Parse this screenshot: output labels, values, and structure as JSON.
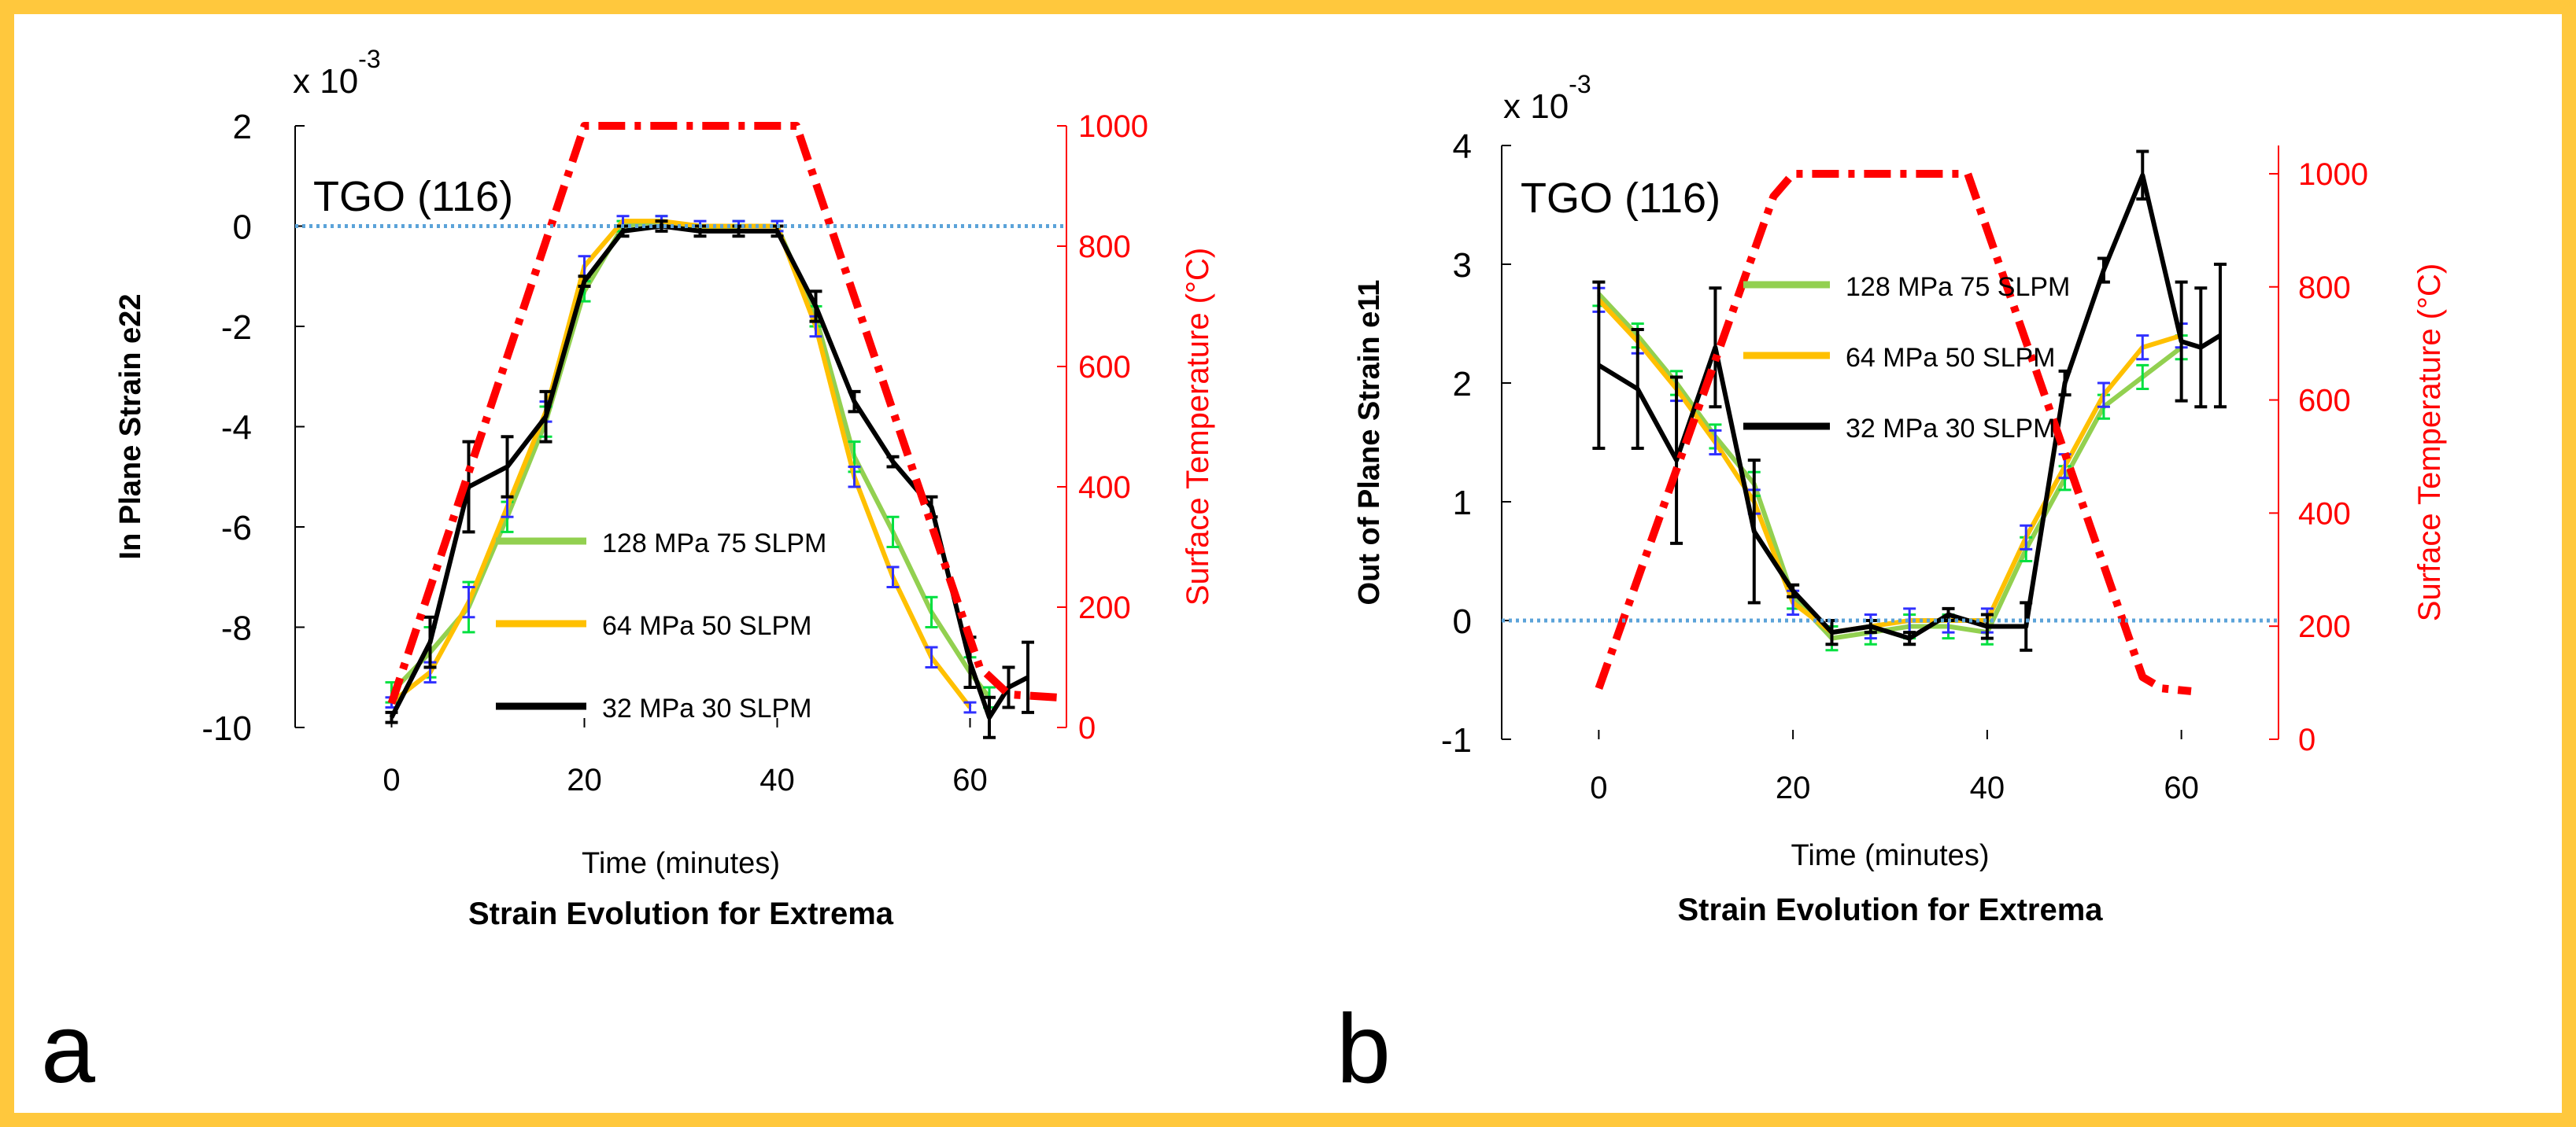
{
  "frame_color": "#FFC83D",
  "panel_labels": {
    "a": "a",
    "b": "b"
  },
  "colors": {
    "green": "#92D050",
    "yellow": "#FFC000",
    "black": "#000000",
    "red": "#FF0000",
    "blue": "#5BA3D9",
    "err_green": "#00E040",
    "err_blue": "#3030FF"
  },
  "chart_data": [
    {
      "type": "line",
      "panel": "a",
      "title": "Strain Evolution for Extrema",
      "xlabel": "Time (minutes)",
      "ylabel": "In Plane Strain e22",
      "y2label": "Surface Temperature (°C)",
      "exponent": "x 10",
      "exponent_power": "-3",
      "annotation": "TGO (116)",
      "xlim": [
        -10,
        70
      ],
      "ylim": [
        -10,
        2
      ],
      "y2lim": [
        0,
        1000
      ],
      "xticks": [
        0,
        20,
        40,
        60
      ],
      "yticks": [
        2,
        0,
        -2,
        -4,
        -6,
        -8,
        -10
      ],
      "y2ticks": [
        1000,
        800,
        600,
        400,
        200,
        0
      ],
      "legend_position": "center-left",
      "series": [
        {
          "name": "128 MPa 75 SLPM",
          "color": "green",
          "x": [
            0,
            4,
            8,
            12,
            16,
            20,
            24,
            28,
            32,
            36,
            40,
            44,
            48,
            52,
            56,
            60,
            62
          ],
          "y": [
            -9.3,
            -8.5,
            -7.6,
            -5.8,
            -3.9,
            -1.3,
            0.0,
            0.1,
            -0.1,
            0.0,
            0.0,
            -1.8,
            -4.6,
            -6.1,
            -7.7,
            -8.9,
            -9.4
          ],
          "err": [
            0.2,
            0.5,
            0.5,
            0.3,
            0.3,
            0.2,
            0.1,
            0.1,
            0.1,
            0.1,
            0.1,
            0.2,
            0.3,
            0.3,
            0.3,
            0.3,
            0.2
          ]
        },
        {
          "name": "64 MPa 50 SLPM",
          "color": "yellow",
          "x": [
            0,
            4,
            8,
            12,
            16,
            20,
            24,
            28,
            32,
            36,
            40,
            44,
            48,
            52,
            56,
            60
          ],
          "y": [
            -9.5,
            -8.9,
            -7.5,
            -5.6,
            -3.7,
            -0.8,
            0.1,
            0.1,
            0.0,
            0.0,
            0.0,
            -2.0,
            -5.0,
            -7.0,
            -8.6,
            -9.6
          ],
          "err": [
            0.1,
            0.2,
            0.3,
            0.2,
            0.2,
            0.2,
            0.1,
            0.1,
            0.1,
            0.1,
            0.1,
            0.2,
            0.2,
            0.2,
            0.2,
            0.1
          ]
        },
        {
          "name": "32 MPa 30 SLPM",
          "color": "black",
          "x": [
            0,
            4,
            8,
            12,
            16,
            20,
            24,
            28,
            32,
            36,
            40,
            44,
            48,
            52,
            56,
            60,
            62,
            64,
            66
          ],
          "y": [
            -9.8,
            -8.3,
            -5.2,
            -4.8,
            -3.8,
            -1.1,
            -0.1,
            0.0,
            -0.1,
            -0.1,
            -0.1,
            -1.6,
            -3.5,
            -4.7,
            -5.6,
            -8.7,
            -9.8,
            -9.2,
            -9.0
          ],
          "err": [
            0.1,
            0.5,
            0.9,
            0.6,
            0.5,
            0.1,
            0.1,
            0.1,
            0.1,
            0.1,
            0.1,
            0.3,
            0.2,
            0.1,
            0.2,
            0.5,
            0.4,
            0.4,
            0.7
          ]
        },
        {
          "name": "Surface Temperature",
          "color": "red",
          "axis": "y2",
          "x": [
            0,
            20,
            42,
            61,
            64,
            69
          ],
          "y": [
            40,
            1000,
            1000,
            100,
            55,
            50
          ]
        },
        {
          "name": "Zero strain",
          "color": "blue",
          "x": [
            -10,
            70
          ],
          "y": [
            0,
            0
          ]
        }
      ]
    },
    {
      "type": "line",
      "panel": "b",
      "title": "Strain Evolution for Extrema",
      "xlabel": "Time (minutes)",
      "ylabel": "Out of Plane Strain e11",
      "y2label": "Surface Temperature (°C)",
      "exponent": "x 10",
      "exponent_power": "-3",
      "annotation": "TGO (116)",
      "xlim": [
        -10,
        70
      ],
      "ylim": [
        -1,
        4
      ],
      "y2lim": [
        0,
        1050
      ],
      "xticks": [
        0,
        20,
        40,
        60
      ],
      "yticks": [
        4,
        3,
        2,
        1,
        0,
        -1
      ],
      "y2ticks": [
        1000,
        800,
        600,
        400,
        200,
        0
      ],
      "legend_position": "top-center",
      "series": [
        {
          "name": "128 MPa 75 SLPM",
          "color": "green",
          "x": [
            0,
            4,
            8,
            12,
            16,
            20,
            24,
            28,
            32,
            36,
            40,
            44,
            48,
            52,
            56,
            60
          ],
          "y": [
            2.75,
            2.4,
            2.0,
            1.55,
            1.15,
            0.2,
            -0.15,
            -0.1,
            -0.05,
            -0.05,
            -0.1,
            0.6,
            1.2,
            1.8,
            2.05,
            2.3
          ],
          "err": [
            0.1,
            0.1,
            0.1,
            0.1,
            0.1,
            0.1,
            0.1,
            0.1,
            0.1,
            0.1,
            0.1,
            0.1,
            0.1,
            0.1,
            0.1,
            0.1
          ]
        },
        {
          "name": "64 MPa 50 SLPM",
          "color": "yellow",
          "x": [
            0,
            4,
            8,
            12,
            16,
            20,
            24,
            28,
            32,
            36,
            40,
            44,
            48,
            52,
            56,
            60
          ],
          "y": [
            2.7,
            2.35,
            1.95,
            1.5,
            1.0,
            0.15,
            -0.1,
            -0.05,
            0.0,
            0.0,
            0.0,
            0.7,
            1.3,
            1.9,
            2.3,
            2.4
          ],
          "err": [
            0.1,
            0.1,
            0.1,
            0.1,
            0.1,
            0.1,
            0.1,
            0.1,
            0.1,
            0.1,
            0.1,
            0.1,
            0.1,
            0.1,
            0.1,
            0.1
          ]
        },
        {
          "name": "32 MPa 30 SLPM",
          "color": "black",
          "x": [
            0,
            4,
            8,
            12,
            16,
            20,
            24,
            28,
            32,
            36,
            40,
            44,
            48,
            52,
            56,
            60,
            62,
            64
          ],
          "y": [
            2.15,
            1.95,
            1.35,
            2.3,
            0.75,
            0.25,
            -0.1,
            -0.05,
            -0.15,
            0.05,
            -0.05,
            -0.05,
            2.0,
            2.95,
            3.75,
            2.35,
            2.3,
            2.4
          ],
          "err": [
            0.7,
            0.5,
            0.7,
            0.5,
            0.6,
            0.05,
            0.1,
            0.05,
            0.05,
            0.05,
            0.1,
            0.2,
            0.1,
            0.1,
            0.2,
            0.5,
            0.5,
            0.6
          ]
        },
        {
          "name": "Surface Temperature",
          "color": "red",
          "axis": "y2",
          "x": [
            0,
            18,
            20,
            38,
            56,
            58,
            61
          ],
          "y": [
            90,
            960,
            1000,
            1000,
            110,
            90,
            85
          ]
        },
        {
          "name": "Zero strain",
          "color": "blue",
          "x": [
            -10,
            70
          ],
          "y": [
            0,
            0
          ]
        }
      ]
    }
  ]
}
